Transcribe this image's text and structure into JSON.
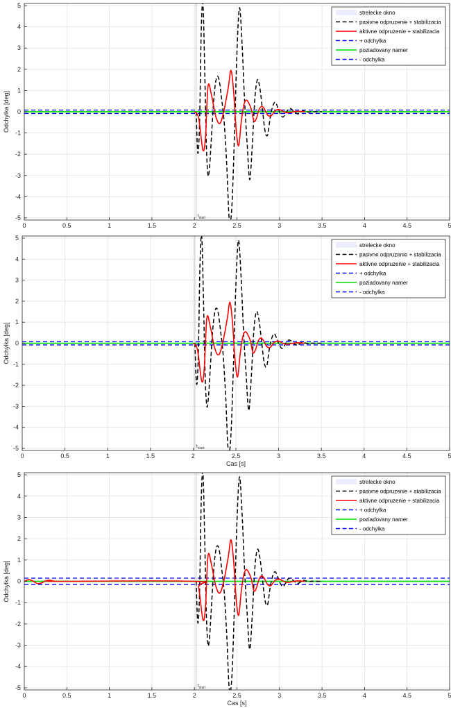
{
  "chart_data": [
    {
      "type": "line",
      "ylabel": "Odchylka [deg]",
      "xlabel": "",
      "xlim": [
        0,
        5
      ],
      "ylim": [
        -5.1,
        5.1
      ],
      "xticks": [
        "0",
        "0.5",
        "1",
        "1.5",
        "2",
        "2.5",
        "3",
        "3.5",
        "4",
        "4.5",
        "5"
      ],
      "yticks": [
        "5",
        "4",
        "3",
        "2",
        "1",
        "0",
        "-1",
        "-2",
        "-3",
        "-4",
        "-5"
      ],
      "grid": true,
      "legend_position": "top-right",
      "tstart_label": "t",
      "tstart_sub": "start",
      "tstart_x": 2.02,
      "band": 0.08,
      "series": [
        {
          "name": "strelecke okno",
          "color": "#c8c8ff",
          "style": "patch"
        },
        {
          "name": "pasivne odpruzenie + stabilizacia",
          "color": "#000000",
          "style": "dashed",
          "x": [
            2.02,
            2.04,
            2.06,
            2.08,
            2.1,
            2.12,
            2.14,
            2.16,
            2.18,
            2.2,
            2.23,
            2.26,
            2.29,
            2.32,
            2.35,
            2.38,
            2.41,
            2.44,
            2.47,
            2.5,
            2.53,
            2.56,
            2.59,
            2.62,
            2.65,
            2.68,
            2.71,
            2.74,
            2.77,
            2.8,
            2.83,
            2.86,
            2.89,
            2.92,
            2.95,
            2.98,
            3.01,
            3.04,
            3.07,
            3.1,
            3.13,
            3.16,
            3.19,
            3.22,
            3.25,
            3.28,
            3.31,
            3.34,
            3.37,
            3.4,
            3.45,
            3.5
          ],
          "y": [
            0,
            -1.95,
            -0.6,
            3.8,
            5.1,
            2.2,
            -1.5,
            -3.0,
            -2.5,
            -1.2,
            0.7,
            1.6,
            1.5,
            0.6,
            -0.5,
            -2.5,
            -5.1,
            -4.5,
            -1.2,
            2.8,
            4.9,
            3.2,
            0.5,
            -1.5,
            -3.2,
            -1.6,
            0.6,
            1.5,
            1.1,
            0.1,
            -0.9,
            -1.1,
            -0.3,
            0.25,
            0.45,
            0.2,
            -0.1,
            -0.25,
            -0.1,
            0.1,
            0.15,
            0.05,
            -0.05,
            -0.1,
            -0.02,
            0.05,
            0.02,
            -0.02,
            0,
            0,
            0,
            0
          ]
        },
        {
          "name": "aktivne odpruzenie + stabilizacia",
          "color": "#ff0000",
          "style": "solid",
          "x": [
            2.0,
            2.05,
            2.1,
            2.13,
            2.16,
            2.2,
            2.25,
            2.3,
            2.35,
            2.4,
            2.43,
            2.46,
            2.49,
            2.52,
            2.55,
            2.58,
            2.61,
            2.64,
            2.67,
            2.7,
            2.73,
            2.76,
            2.79,
            2.82,
            2.86,
            2.9,
            2.95,
            3.0,
            3.05,
            3.1,
            3.2,
            3.3
          ],
          "y": [
            0,
            -0.3,
            -1.8,
            -1.2,
            1.2,
            0.8,
            -0.2,
            -0.55,
            0.1,
            1.2,
            1.95,
            1.0,
            -0.8,
            -1.6,
            -0.5,
            0.3,
            0.55,
            0.4,
            0.1,
            -0.45,
            -0.3,
            0.1,
            0.25,
            0.15,
            -0.15,
            -0.2,
            0.05,
            0.1,
            0.0,
            -0.05,
            0.02,
            0
          ]
        },
        {
          "name": "+ odchylka",
          "color": "#0000ff",
          "style": "dashed"
        },
        {
          "name": "poziadovany namer",
          "color": "#00dd00",
          "style": "solid"
        },
        {
          "name": "- odchylka",
          "color": "#0000ff",
          "style": "dashed"
        }
      ]
    },
    {
      "type": "line",
      "ylabel": "Odchylka [deg]",
      "xlabel": "Cas [s]",
      "xlim": [
        0,
        5
      ],
      "ylim": [
        -5.1,
        5.1
      ],
      "xticks": [
        "0",
        "0.5",
        "1",
        "1.5",
        "2",
        "2.5",
        "3",
        "3.5",
        "4",
        "4.5",
        "5"
      ],
      "yticks": [
        "5",
        "4",
        "3",
        "2",
        "1",
        "0",
        "-1",
        "-2",
        "-3",
        "-4",
        "-5"
      ],
      "grid": true,
      "legend_position": "top-right",
      "tstart_label": "t",
      "tstart_sub": "start",
      "tstart_x": 2.02,
      "band": 0.08,
      "series": [
        {
          "name": "strelecke okno",
          "color": "#c8c8ff",
          "style": "patch"
        },
        {
          "name": "pasivne odpruzenie + stabilizacia",
          "color": "#000000",
          "style": "dashed",
          "x": [
            2.02,
            2.04,
            2.06,
            2.08,
            2.1,
            2.12,
            2.14,
            2.16,
            2.18,
            2.2,
            2.23,
            2.26,
            2.29,
            2.32,
            2.35,
            2.38,
            2.41,
            2.44,
            2.47,
            2.5,
            2.53,
            2.56,
            2.59,
            2.62,
            2.65,
            2.68,
            2.71,
            2.74,
            2.77,
            2.8,
            2.83,
            2.86,
            2.89,
            2.92,
            2.95,
            2.98,
            3.01,
            3.04,
            3.07,
            3.1,
            3.13,
            3.16,
            3.19,
            3.22,
            3.25,
            3.28,
            3.31,
            3.34,
            3.37,
            3.4,
            3.45,
            3.5
          ],
          "y": [
            0,
            -1.95,
            -0.6,
            3.8,
            5.1,
            2.2,
            -1.5,
            -3.0,
            -2.5,
            -1.2,
            0.7,
            1.6,
            1.5,
            0.6,
            -0.5,
            -2.5,
            -5.1,
            -4.5,
            -1.2,
            2.8,
            4.9,
            3.2,
            0.5,
            -1.5,
            -3.2,
            -1.6,
            0.6,
            1.5,
            1.1,
            0.1,
            -0.9,
            -1.1,
            -0.3,
            0.25,
            0.45,
            0.2,
            -0.1,
            -0.25,
            -0.1,
            0.1,
            0.15,
            0.05,
            -0.05,
            -0.1,
            -0.02,
            0.05,
            0.02,
            -0.02,
            0,
            0,
            0,
            0
          ]
        },
        {
          "name": "aktivne odpruzenie + stabilizacia",
          "color": "#ff0000",
          "style": "solid",
          "x": [
            2.0,
            2.05,
            2.1,
            2.13,
            2.16,
            2.2,
            2.25,
            2.3,
            2.35,
            2.4,
            2.43,
            2.46,
            2.49,
            2.52,
            2.55,
            2.58,
            2.61,
            2.64,
            2.67,
            2.7,
            2.73,
            2.76,
            2.79,
            2.82,
            2.86,
            2.9,
            2.95,
            3.0,
            3.05,
            3.1,
            3.2,
            3.3
          ],
          "y": [
            0,
            -0.3,
            -1.8,
            -1.2,
            1.2,
            0.8,
            -0.2,
            -0.55,
            0.1,
            1.2,
            1.95,
            1.0,
            -0.8,
            -1.6,
            -0.5,
            0.3,
            0.55,
            0.4,
            0.1,
            -0.45,
            -0.3,
            0.1,
            0.25,
            0.15,
            -0.15,
            -0.2,
            0.05,
            0.1,
            0.0,
            -0.05,
            0.02,
            0
          ]
        },
        {
          "name": "+ odchylka",
          "color": "#0000ff",
          "style": "dashed"
        },
        {
          "name": "poziadovany namer",
          "color": "#00dd00",
          "style": "solid"
        },
        {
          "name": "- odchylka",
          "color": "#0000ff",
          "style": "dashed"
        }
      ]
    },
    {
      "type": "line",
      "ylabel": "Odchylka [deg]",
      "xlabel": "Cas [s]",
      "xlim": [
        0,
        5
      ],
      "ylim": [
        -5.1,
        5.1
      ],
      "xticks": [
        "0",
        "0.5",
        "1",
        "1.5",
        "2",
        "2.5",
        "3",
        "3.5",
        "4",
        "4.5",
        "5"
      ],
      "yticks": [
        "5",
        "4",
        "3",
        "2",
        "1",
        "0",
        "-1",
        "-2",
        "-3",
        "-4",
        "-5"
      ],
      "grid": true,
      "legend_position": "top-right",
      "tstart_label": "t",
      "tstart_sub": "start",
      "tstart_x": 2.02,
      "band": 0.15,
      "series": [
        {
          "name": "strelecke okno",
          "color": "#c8c8ff",
          "style": "patch"
        },
        {
          "name": "pasivne odpruzenie + stabilizacia",
          "color": "#000000",
          "style": "dashed",
          "x": [
            2.02,
            2.04,
            2.06,
            2.08,
            2.1,
            2.12,
            2.14,
            2.16,
            2.18,
            2.2,
            2.23,
            2.26,
            2.29,
            2.32,
            2.35,
            2.38,
            2.41,
            2.44,
            2.47,
            2.5,
            2.53,
            2.56,
            2.59,
            2.62,
            2.65,
            2.68,
            2.71,
            2.74,
            2.77,
            2.8,
            2.83,
            2.86,
            2.89,
            2.92,
            2.95,
            2.98,
            3.01,
            3.04,
            3.07,
            3.1,
            3.13,
            3.16,
            3.19,
            3.22,
            3.25,
            3.28,
            3.31,
            3.34,
            3.37,
            3.4,
            3.45,
            3.5
          ],
          "y": [
            0,
            -1.95,
            -0.6,
            3.8,
            5.1,
            2.2,
            -1.5,
            -3.0,
            -2.5,
            -1.2,
            0.7,
            1.6,
            1.5,
            0.6,
            -0.5,
            -2.5,
            -5.1,
            -4.5,
            -1.2,
            2.8,
            4.9,
            3.2,
            0.5,
            -1.5,
            -3.2,
            -1.6,
            0.6,
            1.5,
            1.1,
            0.1,
            -0.9,
            -1.1,
            -0.3,
            0.25,
            0.45,
            0.2,
            -0.1,
            -0.25,
            -0.1,
            0.1,
            0.15,
            0.05,
            -0.05,
            -0.1,
            -0.02,
            0.05,
            0.02,
            -0.02,
            0,
            0,
            0,
            0
          ]
        },
        {
          "name": "aktivne odpruzenie + stabilizacia",
          "color": "#ff0000",
          "style": "solid",
          "x": [
            0.0,
            0.05,
            0.1,
            0.15,
            0.2,
            0.25,
            0.3,
            0.35,
            0.4,
            2.0,
            2.05,
            2.1,
            2.13,
            2.16,
            2.2,
            2.25,
            2.3,
            2.35,
            2.4,
            2.43,
            2.46,
            2.49,
            2.52,
            2.55,
            2.58,
            2.61,
            2.64,
            2.67,
            2.7,
            2.73,
            2.76,
            2.79,
            2.82,
            2.86,
            2.9,
            2.95,
            3.0,
            3.05,
            3.1,
            3.2,
            3.3
          ],
          "y": [
            0,
            0.08,
            0.02,
            -0.1,
            -0.08,
            0.02,
            0.05,
            0.01,
            0,
            0,
            -0.3,
            -1.8,
            -1.2,
            1.2,
            0.8,
            -0.2,
            -0.55,
            0.1,
            1.2,
            1.95,
            1.0,
            -0.8,
            -1.6,
            -0.5,
            0.3,
            0.55,
            0.4,
            0.1,
            -0.45,
            -0.3,
            0.1,
            0.25,
            0.15,
            -0.15,
            -0.2,
            0.05,
            0.1,
            0.0,
            -0.05,
            0.02,
            0
          ]
        },
        {
          "name": "+ odchylka",
          "color": "#0000ff",
          "style": "dashed"
        },
        {
          "name": "poziadovany namer",
          "color": "#00dd00",
          "style": "solid"
        },
        {
          "name": "- odchylka",
          "color": "#0000ff",
          "style": "dashed"
        }
      ]
    }
  ]
}
